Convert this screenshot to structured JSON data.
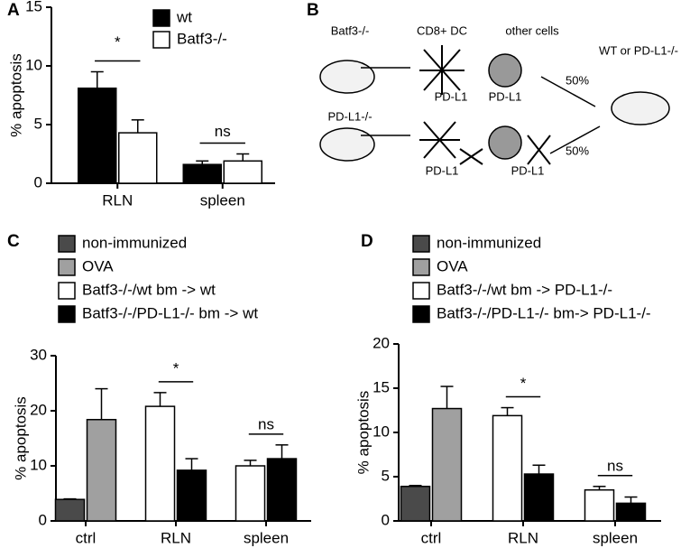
{
  "chart_data": [
    {
      "type": "bar",
      "panel": "A",
      "ylabel": "% apoptosis",
      "categories": [
        "RLN",
        "spleen"
      ],
      "series": [
        {
          "name": "wt",
          "color": "#000000",
          "values": [
            8.1,
            1.6
          ],
          "errors": [
            1.4,
            0.3
          ]
        },
        {
          "name": "Batf3-/-",
          "color": "#ffffff",
          "values": [
            4.3,
            1.9
          ],
          "errors": [
            1.1,
            0.6
          ]
        }
      ],
      "ylim": [
        0,
        15
      ],
      "yticks": [
        0,
        5,
        10,
        15
      ],
      "annotations": [
        "*",
        "ns"
      ]
    },
    {
      "type": "bar",
      "panel": "C",
      "ylabel": "% apoptosis",
      "categories": [
        "ctrl",
        "RLN",
        "spleen"
      ],
      "series": [
        {
          "name": "non-immunized",
          "color": "#4a4a4a",
          "values": [
            3.9,
            null,
            null
          ],
          "errors": [
            0.1,
            null,
            null
          ]
        },
        {
          "name": "OVA",
          "color": "#a0a0a0",
          "values": [
            18.4,
            null,
            null
          ],
          "errors": [
            5.6,
            null,
            null
          ]
        },
        {
          "name": "Batf3-/-/wt bm -> wt",
          "color": "#ffffff",
          "values": [
            null,
            20.8,
            10.0
          ],
          "errors": [
            null,
            2.5,
            1.0
          ]
        },
        {
          "name": "Batf3-/-/PD-L1-/- bm -> wt",
          "color": "#000000",
          "values": [
            null,
            9.2,
            11.3
          ],
          "errors": [
            null,
            2.1,
            2.5
          ]
        }
      ],
      "ylim": [
        0,
        30
      ],
      "yticks": [
        0,
        10,
        20,
        30
      ],
      "annotations": [
        "*",
        "ns"
      ]
    },
    {
      "type": "bar",
      "panel": "D",
      "ylabel": "% apoptosis",
      "categories": [
        "ctrl",
        "RLN",
        "spleen"
      ],
      "series": [
        {
          "name": "non-immunized",
          "color": "#4a4a4a",
          "values": [
            3.9,
            null,
            null
          ],
          "errors": [
            0.1,
            null,
            null
          ]
        },
        {
          "name": "OVA",
          "color": "#a0a0a0",
          "values": [
            12.7,
            null,
            null
          ],
          "errors": [
            2.5,
            null,
            null
          ]
        },
        {
          "name": "Batf3-/-/wt bm -> PD-L1-/-",
          "color": "#ffffff",
          "values": [
            null,
            11.9,
            3.5
          ],
          "errors": [
            null,
            0.9,
            0.4
          ]
        },
        {
          "name": "Batf3-/-/PD-L1-/- bm-> PD-L1-/-",
          "color": "#000000",
          "values": [
            null,
            5.3,
            2.0
          ],
          "errors": [
            null,
            1.0,
            0.7
          ]
        }
      ],
      "ylim": [
        0,
        20
      ],
      "yticks": [
        0,
        5,
        10,
        15,
        20
      ],
      "annotations": [
        "*",
        "ns"
      ]
    }
  ],
  "diagram": {
    "panel": "B",
    "donor1": "Batf3-/-",
    "cell1": "CD8+ DC",
    "cell2": "other cells",
    "recipient": "WT or PD-L1-/-",
    "donor2": "PD-L1-/-",
    "pdl1": [
      "PD-L1",
      "PD-L1",
      "PD-L1",
      "PD-L1"
    ],
    "split": [
      "50%",
      "50%"
    ]
  }
}
